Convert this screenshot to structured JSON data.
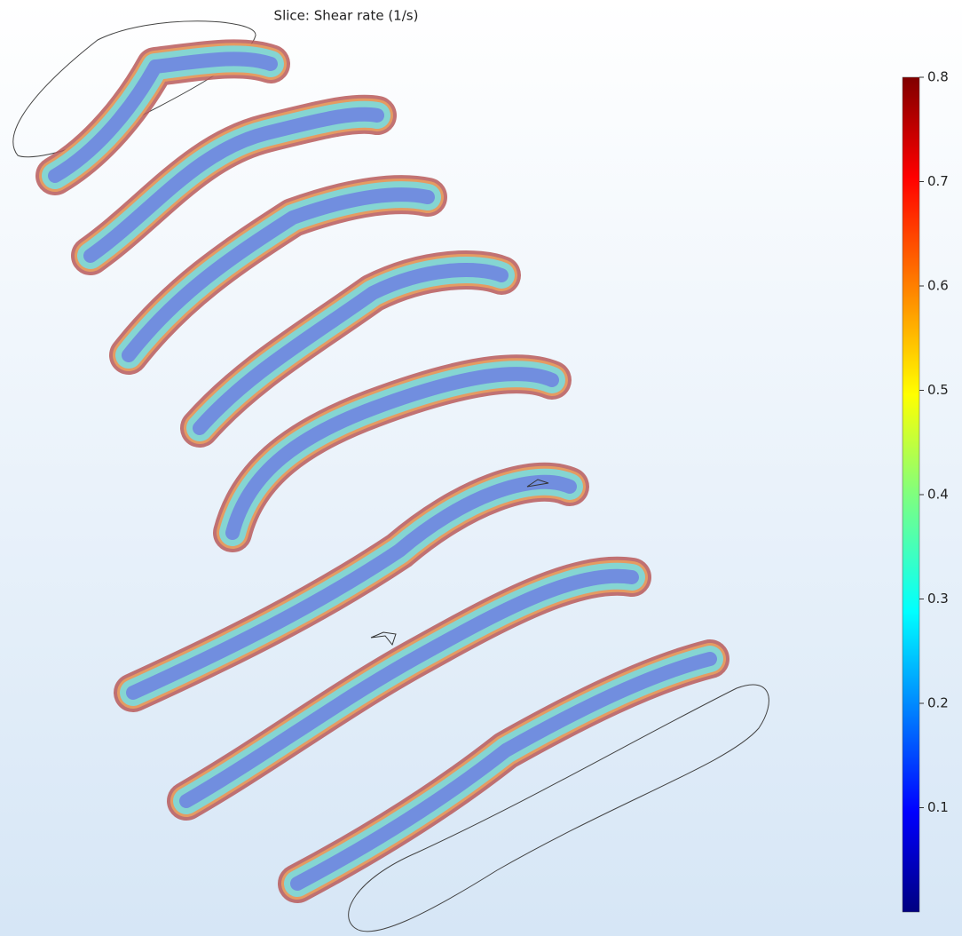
{
  "title": "Slice: Shear rate (1/s)",
  "colorbar": {
    "range": [
      0,
      0.8
    ],
    "ticks": [
      0.1,
      0.2,
      0.3,
      0.4,
      0.5,
      0.6,
      0.7,
      0.8
    ]
  }
}
